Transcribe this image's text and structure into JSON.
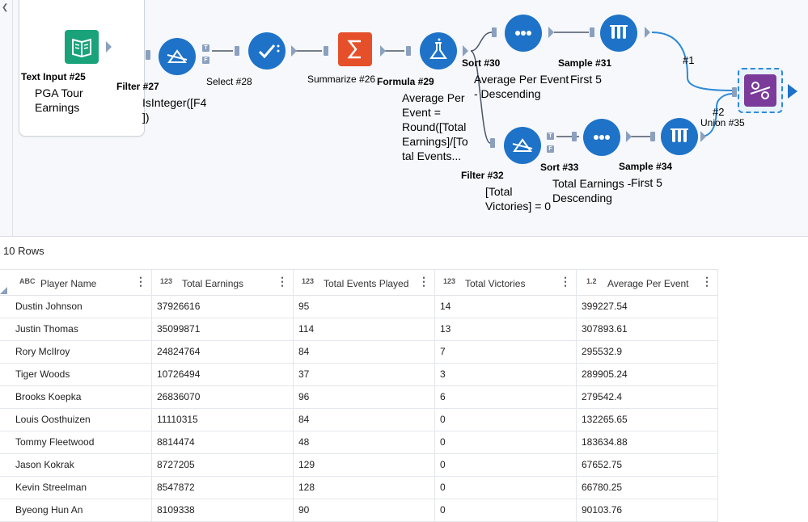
{
  "canvas": {
    "tools": {
      "text_input": {
        "title": "Text Input #25",
        "annotation": "PGA Tour Earnings"
      },
      "filter27": {
        "title": "Filter #27",
        "annotation": "IsInteger([F4 ])",
        "anchor_true": "T",
        "anchor_false": "F"
      },
      "select28": {
        "title": "Select #28"
      },
      "summarize26": {
        "title": "Summarize #26"
      },
      "formula29": {
        "title": "Formula #29",
        "annotation": "Average Per Event = Round([Total Earnings]/[To tal Events..."
      },
      "sort30": {
        "title": "Sort #30",
        "annotation": "Average Per Event - Descending"
      },
      "sample31": {
        "title": "Sample #31",
        "annotation": "First 5"
      },
      "filter32": {
        "title": "Filter #32",
        "annotation": "[Total Victories] = 0",
        "anchor_true": "T",
        "anchor_false": "F"
      },
      "sort33": {
        "title": "Sort #33",
        "annotation": "Total Earnings - Descending"
      },
      "sample34": {
        "title": "Sample #34",
        "annotation": "First 5"
      },
      "union35": {
        "title": "Union #35",
        "input1_label": "#1",
        "input2_label": "#2"
      }
    },
    "colors": {
      "tool_blue": "#1e73c8",
      "summarize_orange": "#e5502b",
      "text_input_green": "#1aa37a",
      "union_purple": "#7a3b9a",
      "connector": "#8aa0be",
      "wire_blue": "#2e8ad8"
    }
  },
  "results": {
    "row_count_label": "10 Rows",
    "columns": [
      {
        "name": "Player Name",
        "type": "ABC"
      },
      {
        "name": "Total Earnings",
        "type": "123"
      },
      {
        "name": "Total Events Played",
        "type": "123"
      },
      {
        "name": "Total Victories",
        "type": "123"
      },
      {
        "name": "Average Per Event",
        "type": "1.2"
      }
    ],
    "rows": [
      [
        "Dustin Johnson",
        "37926616",
        "95",
        "14",
        "399227.54"
      ],
      [
        "Justin Thomas",
        "35099871",
        "114",
        "13",
        "307893.61"
      ],
      [
        "Rory McIlroy",
        "24824764",
        "84",
        "7",
        "295532.9"
      ],
      [
        "Tiger Woods",
        "10726494",
        "37",
        "3",
        "289905.24"
      ],
      [
        "Brooks Koepka",
        "26836070",
        "96",
        "6",
        "279542.4"
      ],
      [
        "Louis Oosthuizen",
        "11110315",
        "84",
        "0",
        "132265.65"
      ],
      [
        "Tommy Fleetwood",
        "8814474",
        "48",
        "0",
        "183634.88"
      ],
      [
        "Jason Kokrak",
        "8727205",
        "129",
        "0",
        "67652.75"
      ],
      [
        "Kevin Streelman",
        "8547872",
        "128",
        "0",
        "66780.25"
      ],
      [
        "Byeong Hun An",
        "8109338",
        "90",
        "0",
        "90103.76"
      ]
    ]
  }
}
